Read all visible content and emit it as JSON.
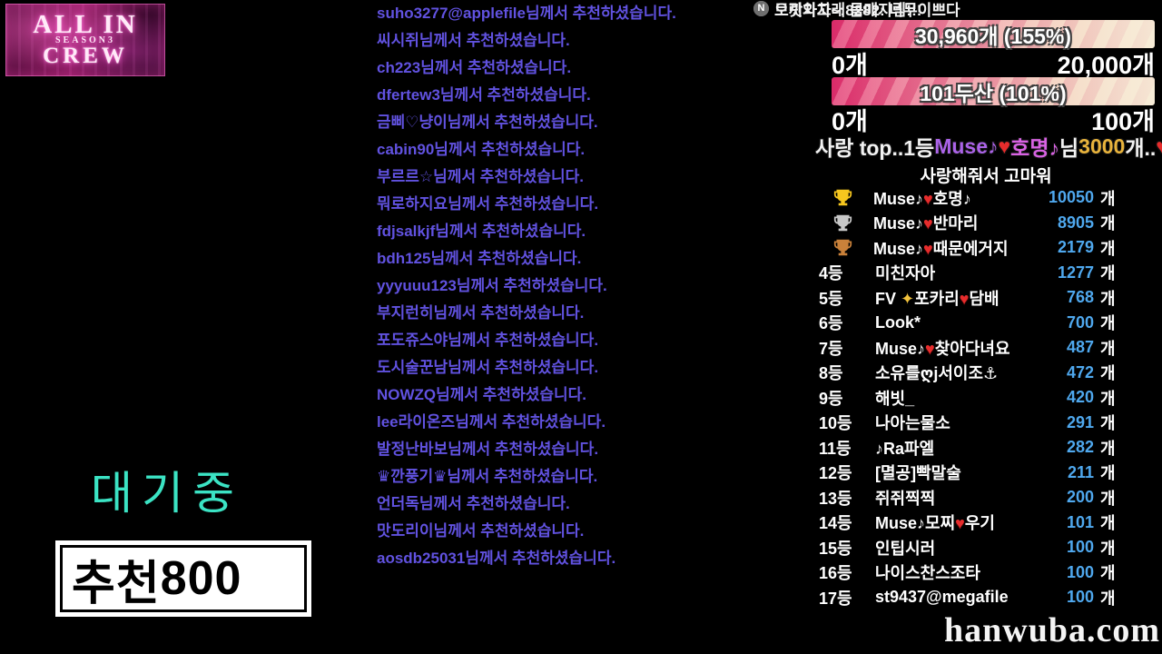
{
  "logo": {
    "line1": "ALL IN",
    "line2": "SEASON3",
    "line3": "CREW"
  },
  "status": {
    "waiting_text": "대기중",
    "recommend_label": "추천",
    "recommend_count": "800"
  },
  "chat": {
    "badge_letter": "N",
    "recommend_color": "#6152e0",
    "messages": [
      {
        "type": "recommend",
        "text": "suho3277@applefile님께서 추천하셨습니다."
      },
      {
        "type": "recommend",
        "text": "씨시쥐님께서 추천하셨습니다."
      },
      {
        "type": "recommend",
        "text": "ch223님께서 추천하셨습니다."
      },
      {
        "type": "recommend",
        "text": "dfertew3님께서 추천하셨습니다."
      },
      {
        "type": "recommend",
        "text": "금삐♡냥이님께서 추천하셨습니다."
      },
      {
        "type": "recommend",
        "text": "cabin90님께서 추천하셨습니다."
      },
      {
        "type": "recommend",
        "text": "부르르☆님께서 추천하셨습니다."
      },
      {
        "type": "recommend",
        "text": "뭐로하지요님께서 추천하셨습니다."
      },
      {
        "type": "recommend",
        "text": "fdjsalkjf님께서 추천하셨습니다."
      },
      {
        "type": "chat",
        "text": "으랏차차~:  몸매지림!!!"
      },
      {
        "type": "recommend",
        "text": "bdh125님께서 추천하셨습니다."
      },
      {
        "type": "recommend",
        "text": "yyyuuu123님께서 추천하셨습니다."
      },
      {
        "type": "chat",
        "text": "토끼와고래8282:  너무이쁘다"
      },
      {
        "type": "recommend",
        "text": "부지런히님께서 추천하셨습니다."
      },
      {
        "type": "recommend",
        "text": "포도쥬스야님께서 추천하셨습니다."
      },
      {
        "type": "recommend",
        "text": "도시술꾼남님께서 추천하셨습니다."
      },
      {
        "type": "recommend",
        "text": "NOWZQ님께서 추천하셨습니다."
      },
      {
        "type": "recommend",
        "text": "lee라이온즈님께서 추천하셨습니다."
      },
      {
        "type": "recommend",
        "text": "발정난바보님께서 추천하셨습니다."
      },
      {
        "type": "recommend",
        "text": "♛깐풍기♛님께서 추천하셨습니다."
      },
      {
        "type": "recommend",
        "text": "언더독님께서 추천하셨습니다."
      },
      {
        "type": "recommend",
        "text": "맛도리이님께서 추천하셨습니다."
      },
      {
        "type": "recommend",
        "text": "aosdb25031님께서 추천하셨습니다."
      }
    ]
  },
  "goals": [
    {
      "value_label": "30,960개 (155%)",
      "min": "0개",
      "max": "20,000개"
    },
    {
      "value_label": "101두산 (101%)",
      "min": "0개",
      "max": "100개"
    }
  ],
  "love_top_line": {
    "segments": [
      {
        "text": "사랑 top..1등",
        "color": "#f2f2f2"
      },
      {
        "text": "Muse♪",
        "color": "#ab63e8"
      },
      {
        "text": "♥",
        "color": "#e62c2c"
      },
      {
        "text": "호명♪",
        "color": "#d863e3"
      },
      {
        "text": "님",
        "color": "#f2f2f2"
      },
      {
        "text": "3000",
        "color": "#e8b33c"
      },
      {
        "text": "개..",
        "color": "#f2f2f2"
      },
      {
        "text": "♥",
        "color": "#e62c2c"
      }
    ]
  },
  "leaderboard": {
    "title": "사랑해줘서 고마워",
    "unit": "개",
    "count_color": "#4fa8ee",
    "trophy_colors": {
      "gold": "#f6c61e",
      "silver": "#c8c8c8",
      "bronze": "#c9813a"
    },
    "rows": [
      {
        "rank": "1",
        "trophy": "gold",
        "name": "Muse♪♥호명♪",
        "count": "10050"
      },
      {
        "rank": "2",
        "trophy": "silver",
        "name": "Muse♪♥반마리",
        "count": "8905"
      },
      {
        "rank": "3",
        "trophy": "bronze",
        "name": "Muse♪♥때문에거지",
        "count": "2179"
      },
      {
        "rank": "4등",
        "name": "미친자아",
        "count": "1277"
      },
      {
        "rank": "5등",
        "name": "FV ✨포카리♥담배",
        "count": "768"
      },
      {
        "rank": "6등",
        "name": "Look*",
        "count": "700"
      },
      {
        "rank": "7등",
        "name": "Muse♪♥찾아다녀요",
        "count": "487"
      },
      {
        "rank": "8등",
        "name": "소유를ღj서이조⚓",
        "count": "472"
      },
      {
        "rank": "9등",
        "name": "해빗_",
        "count": "420"
      },
      {
        "rank": "10등",
        "name": "나아는물소",
        "count": "291"
      },
      {
        "rank": "11등",
        "name": "♪Ra파엘",
        "count": "282"
      },
      {
        "rank": "12등",
        "name": "[멸공]빡말술",
        "count": "211"
      },
      {
        "rank": "13등",
        "name": "쥐쥐찍찍",
        "count": "200"
      },
      {
        "rank": "14등",
        "name": "Muse♪모찌♥우기",
        "count": "101"
      },
      {
        "rank": "15등",
        "name": "인팁시러",
        "count": "100"
      },
      {
        "rank": "16등",
        "name": "나이스찬스조타",
        "count": "100"
      },
      {
        "rank": "17등",
        "name": "st9437@megafile",
        "count": "100"
      }
    ]
  },
  "watermark": "hanwuba.com"
}
